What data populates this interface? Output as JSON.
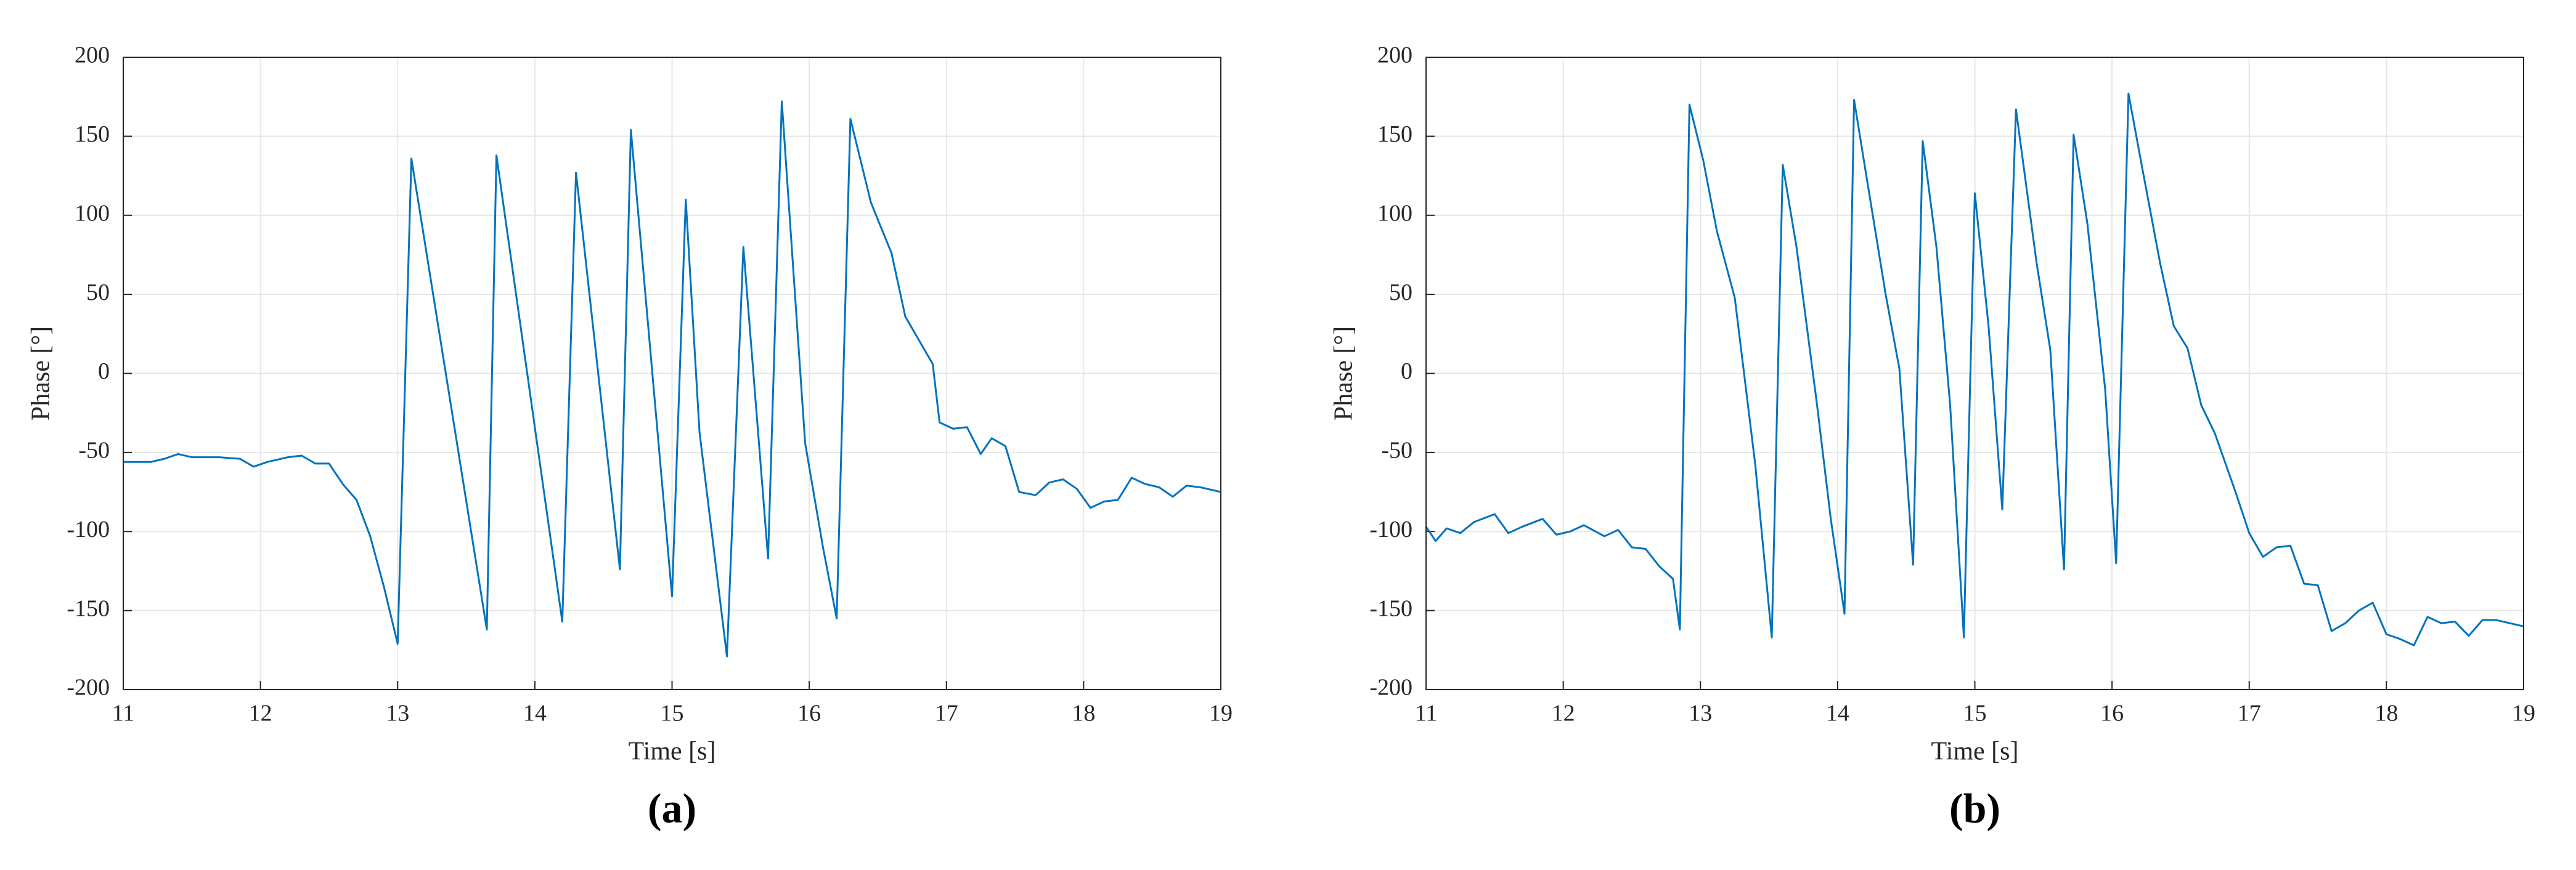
{
  "chart_data": [
    {
      "type": "line",
      "panel_label": "(a)",
      "xlabel": "Time [s]",
      "ylabel": "Phase [°]",
      "xlim": [
        11,
        19
      ],
      "ylim": [
        -200,
        200
      ],
      "xticks": [
        11,
        12,
        13,
        14,
        15,
        16,
        17,
        18,
        19
      ],
      "yticks": [
        -200,
        -150,
        -100,
        -50,
        0,
        50,
        100,
        150,
        200
      ],
      "grid": true,
      "x": [
        11.0,
        11.2,
        11.3,
        11.4,
        11.5,
        11.7,
        11.85,
        11.95,
        12.05,
        12.2,
        12.3,
        12.4,
        12.5,
        12.6,
        12.7,
        12.8,
        12.9,
        13.0,
        13.1,
        13.65,
        13.72,
        14.2,
        14.3,
        14.62,
        14.7,
        15.0,
        15.1,
        15.2,
        15.4,
        15.52,
        15.7,
        15.8,
        15.97,
        16.1,
        16.2,
        16.3,
        16.45,
        16.6,
        16.7,
        16.9,
        16.95,
        17.05,
        17.15,
        17.25,
        17.33,
        17.43,
        17.53,
        17.65,
        17.75,
        17.85,
        17.95,
        18.05,
        18.15,
        18.25,
        18.35,
        18.45,
        18.55,
        18.65,
        18.75,
        18.85,
        19.0
      ],
      "series": [
        {
          "color": "#0072bd",
          "values": [
            -56,
            -56,
            -54,
            -51,
            -53,
            -53,
            -54,
            -59,
            -56,
            -53,
            -52,
            -57,
            -57,
            -70,
            -80,
            -103,
            -135,
            -171,
            136,
            -162,
            138,
            -157,
            127,
            -124,
            154,
            -141,
            110,
            -37,
            -179,
            80,
            -117,
            172,
            -44,
            -110,
            -155,
            161,
            108,
            76,
            36,
            6,
            -31,
            -35,
            -34,
            -51,
            -41,
            -46,
            -75,
            -77,
            -69,
            -67,
            -73,
            -85,
            -81,
            -80,
            -66,
            -70,
            -72,
            -78,
            -71,
            -72,
            -75
          ]
        }
      ]
    },
    {
      "type": "line",
      "panel_label": "(b)",
      "xlabel": "Time [s]",
      "ylabel": "Phase [°]",
      "xlim": [
        11,
        19
      ],
      "ylim": [
        -200,
        200
      ],
      "xticks": [
        11,
        12,
        13,
        14,
        15,
        16,
        17,
        18,
        19
      ],
      "yticks": [
        -200,
        -150,
        -100,
        -50,
        0,
        50,
        100,
        150,
        200
      ],
      "grid": true,
      "x": [
        11.0,
        11.07,
        11.15,
        11.25,
        11.35,
        11.5,
        11.6,
        11.7,
        11.85,
        11.95,
        12.05,
        12.15,
        12.3,
        12.4,
        12.5,
        12.6,
        12.7,
        12.8,
        12.85,
        12.92,
        13.02,
        13.12,
        13.25,
        13.4,
        13.52,
        13.6,
        13.7,
        13.85,
        13.95,
        14.05,
        14.12,
        14.2,
        14.35,
        14.45,
        14.55,
        14.62,
        14.72,
        14.82,
        14.92,
        15.0,
        15.1,
        15.2,
        15.3,
        15.45,
        15.55,
        15.65,
        15.72,
        15.82,
        15.95,
        16.03,
        16.12,
        16.22,
        16.35,
        16.45,
        16.55,
        16.65,
        16.75,
        16.9,
        17.0,
        17.1,
        17.2,
        17.3,
        17.4,
        17.5,
        17.6,
        17.7,
        17.8,
        17.9,
        18.0,
        18.1,
        18.2,
        18.3,
        18.4,
        18.5,
        18.6,
        18.7,
        18.8,
        18.9,
        19.0
      ],
      "series": [
        {
          "color": "#0072bd",
          "values": [
            -97,
            -106,
            -98,
            -101,
            -94,
            -89,
            -101,
            -97,
            -92,
            -102,
            -100,
            -96,
            -103,
            -99,
            -110,
            -111,
            -122,
            -130,
            -162,
            170,
            135,
            90,
            48,
            -58,
            -167,
            132,
            80,
            -20,
            -92,
            -152,
            173,
            130,
            50,
            3,
            -121,
            147,
            80,
            -20,
            -167,
            114,
            30,
            -86,
            167,
            70,
            15,
            -124,
            151,
            95,
            -10,
            -120,
            177,
            130,
            70,
            30,
            16,
            -20,
            -38,
            -75,
            -101,
            -116,
            -110,
            -109,
            -133,
            -134,
            -163,
            -158,
            -150,
            -145,
            -165,
            -168,
            -172,
            -154,
            -158,
            -157,
            -166,
            -156,
            -156,
            -158,
            -160
          ]
        }
      ]
    }
  ]
}
